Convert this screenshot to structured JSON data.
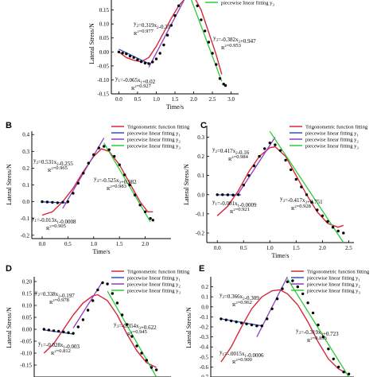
{
  "figure": {
    "type": "multi-panel chart"
  },
  "chart_data": [
    {
      "panel": "A",
      "type": "scatter",
      "xlabel": "Time/s",
      "ylabel": "Lateral Stress/N",
      "xlim": [
        -0.2,
        3.2
      ],
      "ylim": [
        -0.15,
        0.2
      ],
      "xticks": [
        "0.0",
        "0.5",
        "1.0",
        "1.5",
        "2.0",
        "2.5",
        "3.0"
      ],
      "yticks": [
        "0.15",
        "0.10",
        "0.05",
        "0.00",
        "-0.05",
        "-0.10",
        "-0.15"
      ],
      "legend": [
        "piecewise linear fitting y3"
      ],
      "legend_position": "top-right",
      "annotations": [
        {
          "eq": "y2=0.319x2-0.31",
          "r2": "R2=0.977"
        },
        {
          "eq": "y3=-0.382x3+0.947",
          "r2": "R2=0.953"
        },
        {
          "eq": "y1=-0.065x1+0.02",
          "r2": "R2=0.927"
        }
      ],
      "data_points": [
        [
          0.0,
          0.0
        ],
        [
          0.1,
          -0.004
        ],
        [
          0.2,
          -0.007
        ],
        [
          0.3,
          -0.015
        ],
        [
          0.4,
          -0.02
        ],
        [
          0.5,
          -0.028
        ],
        [
          0.6,
          -0.035
        ],
        [
          0.7,
          -0.04
        ],
        [
          0.8,
          -0.042
        ],
        [
          0.9,
          -0.036
        ],
        [
          1.0,
          -0.025
        ],
        [
          1.1,
          -0.005
        ],
        [
          1.2,
          0.025
        ],
        [
          1.3,
          0.06
        ],
        [
          1.4,
          0.095
        ],
        [
          1.5,
          0.13
        ],
        [
          1.6,
          0.165
        ],
        [
          1.7,
          0.195
        ],
        [
          2.1,
          0.165
        ],
        [
          2.2,
          0.115
        ],
        [
          2.3,
          0.075
        ],
        [
          2.4,
          0.035
        ],
        [
          2.5,
          -0.005
        ],
        [
          2.6,
          -0.045
        ],
        [
          2.7,
          -0.095
        ],
        [
          2.8,
          -0.115
        ],
        [
          2.85,
          -0.12
        ]
      ],
      "trig_fit": [
        [
          0.0,
          0.0
        ],
        [
          0.2,
          -0.02
        ],
        [
          0.4,
          -0.03
        ],
        [
          0.6,
          -0.035
        ],
        [
          0.8,
          -0.02
        ],
        [
          1.0,
          0.02
        ],
        [
          1.2,
          0.07
        ],
        [
          1.4,
          0.12
        ],
        [
          1.6,
          0.165
        ],
        [
          1.8,
          0.195
        ],
        [
          2.0,
          0.2
        ],
        [
          2.2,
          0.15
        ],
        [
          2.4,
          0.07
        ],
        [
          2.6,
          -0.01
        ],
        [
          2.75,
          -0.08
        ]
      ],
      "fit_y1": [
        [
          0.0,
          0.01
        ],
        [
          0.8,
          -0.042
        ]
      ],
      "fit_y2": [
        [
          0.8,
          -0.055
        ],
        [
          1.8,
          0.2
        ]
      ],
      "fit_y3": [
        [
          1.9,
          0.2
        ],
        [
          2.75,
          -0.105
        ]
      ]
    },
    {
      "panel": "B",
      "type": "scatter",
      "xlabel": "Time/s",
      "ylabel": "Lateral Stress/N",
      "xlim": [
        -0.2,
        2.5
      ],
      "ylim": [
        -0.22,
        0.42
      ],
      "xticks": [
        "0.0",
        "0.5",
        "1.0",
        "1.5",
        "2.0"
      ],
      "yticks": [
        "0.4",
        "0.3",
        "0.2",
        "0.1",
        "0.0",
        "-0.1",
        "-0.2"
      ],
      "legend": [
        "Trigonometric function fitting",
        "piecewise linear fitting y1",
        "piecewise linear fitting y2",
        "piecewise linear fitting y3"
      ],
      "legend_position": "top-right",
      "annotations": [
        {
          "eq": "y2=0.531x2-0.255",
          "r2": "R2=0.965"
        },
        {
          "eq": "y3=-0.525x3+0.982",
          "r2": "R2=0.983"
        },
        {
          "eq": "y1=-0.013x1-0.0008",
          "r2": "R2=0.905"
        }
      ],
      "data_points": [
        [
          0.0,
          0.0
        ],
        [
          0.1,
          -0.002
        ],
        [
          0.2,
          -0.004
        ],
        [
          0.3,
          -0.006
        ],
        [
          0.4,
          -0.003
        ],
        [
          0.5,
          0.0
        ],
        [
          0.6,
          0.05
        ],
        [
          0.7,
          0.11
        ],
        [
          0.8,
          0.17
        ],
        [
          0.9,
          0.23
        ],
        [
          1.0,
          0.28
        ],
        [
          1.1,
          0.32
        ],
        [
          1.2,
          0.33
        ],
        [
          1.3,
          0.31
        ],
        [
          1.4,
          0.27
        ],
        [
          1.5,
          0.22
        ],
        [
          1.6,
          0.16
        ],
        [
          1.7,
          0.1
        ],
        [
          1.8,
          0.04
        ],
        [
          1.9,
          -0.02
        ],
        [
          2.0,
          -0.06
        ],
        [
          2.1,
          -0.1
        ],
        [
          2.15,
          -0.11
        ]
      ],
      "trig_fit": [
        [
          0.0,
          -0.08
        ],
        [
          0.2,
          -0.06
        ],
        [
          0.4,
          0.0
        ],
        [
          0.6,
          0.08
        ],
        [
          0.8,
          0.18
        ],
        [
          1.0,
          0.27
        ],
        [
          1.15,
          0.315
        ],
        [
          1.3,
          0.3
        ],
        [
          1.5,
          0.22
        ],
        [
          1.7,
          0.11
        ],
        [
          1.9,
          0.0
        ],
        [
          2.05,
          -0.06
        ],
        [
          2.15,
          -0.06
        ]
      ],
      "fit_y1": [
        [
          0.0,
          -0.001
        ],
        [
          0.5,
          -0.007
        ]
      ],
      "fit_y2": [
        [
          0.4,
          -0.04
        ],
        [
          1.2,
          0.38
        ]
      ],
      "fit_y3": [
        [
          1.2,
          0.35
        ],
        [
          2.1,
          -0.12
        ]
      ]
    },
    {
      "panel": "C",
      "type": "scatter",
      "xlabel": "Time/s",
      "ylabel": "Lateral Stress/N",
      "xlim": [
        -0.2,
        2.6
      ],
      "ylim": [
        -0.25,
        0.36
      ],
      "xticks": [
        "0.0",
        "0.5",
        "1.0",
        "1.5",
        "2.0",
        "2.5"
      ],
      "yticks": [
        "0.3",
        "0.2",
        "0.1",
        "0.0",
        "-0.1",
        "-0.2"
      ],
      "legend": [
        "Trigonometric function fitting",
        "piecewise linear fitting y1",
        "piecewise linear fitting y2",
        "piecewise linear fitting y3"
      ],
      "legend_position": "top-right",
      "annotations": [
        {
          "eq": "y2=0.417x2-0.16",
          "r2": "R2=0.984"
        },
        {
          "eq": "y3=-0.417x3+0.751",
          "r2": "R2=0.928"
        },
        {
          "eq": "y1=-0.001x1-0.0009",
          "r2": "R2=0.921"
        }
      ],
      "data_points": [
        [
          0.0,
          0.0
        ],
        [
          0.1,
          0.0
        ],
        [
          0.2,
          -0.001
        ],
        [
          0.3,
          -0.002
        ],
        [
          0.4,
          0.0
        ],
        [
          0.5,
          0.05
        ],
        [
          0.6,
          0.1
        ],
        [
          0.7,
          0.15
        ],
        [
          0.8,
          0.2
        ],
        [
          0.9,
          0.24
        ],
        [
          1.0,
          0.27
        ],
        [
          1.1,
          0.26
        ],
        [
          1.2,
          0.23
        ],
        [
          1.3,
          0.18
        ],
        [
          1.4,
          0.13
        ],
        [
          1.5,
          0.08
        ],
        [
          1.6,
          0.04
        ],
        [
          1.7,
          0.0
        ],
        [
          1.8,
          -0.04
        ],
        [
          1.9,
          -0.08
        ],
        [
          2.0,
          -0.11
        ],
        [
          2.1,
          -0.14
        ],
        [
          2.2,
          -0.17
        ],
        [
          2.3,
          -0.19
        ],
        [
          2.4,
          -0.2
        ]
      ],
      "trig_fit": [
        [
          0.0,
          -0.11
        ],
        [
          0.2,
          -0.06
        ],
        [
          0.4,
          0.02
        ],
        [
          0.6,
          0.12
        ],
        [
          0.8,
          0.2
        ],
        [
          1.0,
          0.245
        ],
        [
          1.1,
          0.25
        ],
        [
          1.3,
          0.2
        ],
        [
          1.5,
          0.1
        ],
        [
          1.7,
          0.0
        ],
        [
          1.9,
          -0.09
        ],
        [
          2.1,
          -0.15
        ],
        [
          2.3,
          -0.17
        ],
        [
          2.4,
          -0.16
        ]
      ],
      "fit_y1": [
        [
          0.0,
          -0.001
        ],
        [
          0.45,
          -0.001
        ]
      ],
      "fit_y2": [
        [
          0.4,
          0.005
        ],
        [
          1.1,
          0.3
        ]
      ],
      "fit_y3": [
        [
          1.0,
          0.33
        ],
        [
          2.4,
          -0.25
        ]
      ]
    },
    {
      "panel": "D",
      "type": "scatter",
      "xlabel": "",
      "ylabel": "Lateral Stress/N",
      "xlim": [
        -0.2,
        2.6
      ],
      "ylim": [
        -0.2,
        0.22
      ],
      "yticks": [
        "0.20",
        "0.15",
        "0.10",
        "0.05",
        "0.00",
        "-0.05",
        "-0.10",
        "-0.15"
      ],
      "legend": [
        "Trigonometric function fitting",
        "piecewise linear fitting y1",
        "piecewise linear fitting y2",
        "piecewise linear fitting y3"
      ],
      "legend_position": "top-right",
      "annotations": [
        {
          "eq": "y2=0.338x2-0.197",
          "r2": "R2=0.978"
        },
        {
          "eq": "y3=-0.354x3+0.622",
          "r2": "R2=0.945"
        },
        {
          "eq": "y1=-0.028x1-0.003",
          "r2": "R2=0.812"
        }
      ],
      "data_points": [
        [
          0.0,
          0.0
        ],
        [
          0.1,
          -0.003
        ],
        [
          0.2,
          -0.006
        ],
        [
          0.3,
          -0.008
        ],
        [
          0.4,
          -0.011
        ],
        [
          0.5,
          -0.014
        ],
        [
          0.6,
          -0.017
        ],
        [
          0.7,
          0.01
        ],
        [
          0.8,
          0.04
        ],
        [
          0.9,
          0.08
        ],
        [
          1.0,
          0.12
        ],
        [
          1.1,
          0.165
        ],
        [
          1.2,
          0.195
        ],
        [
          1.3,
          0.19
        ],
        [
          1.4,
          0.15
        ],
        [
          1.5,
          0.11
        ],
        [
          1.6,
          0.06
        ],
        [
          1.7,
          0.02
        ],
        [
          1.8,
          -0.03
        ],
        [
          1.9,
          -0.07
        ],
        [
          2.0,
          -0.1
        ],
        [
          2.1,
          -0.13
        ],
        [
          2.2,
          -0.16
        ],
        [
          2.3,
          -0.17
        ]
      ],
      "trig_fit": [
        [
          0.0,
          -0.1
        ],
        [
          0.2,
          -0.06
        ],
        [
          0.4,
          0.0
        ],
        [
          0.6,
          0.06
        ],
        [
          0.8,
          0.11
        ],
        [
          1.0,
          0.14
        ],
        [
          1.1,
          0.145
        ],
        [
          1.3,
          0.12
        ],
        [
          1.5,
          0.06
        ],
        [
          1.7,
          -0.02
        ],
        [
          1.9,
          -0.09
        ],
        [
          2.1,
          -0.14
        ],
        [
          2.3,
          -0.16
        ]
      ],
      "fit_y1": [
        [
          0.0,
          -0.003
        ],
        [
          0.6,
          -0.02
        ]
      ],
      "fit_y2": [
        [
          0.6,
          0.005
        ],
        [
          1.2,
          0.2
        ]
      ],
      "fit_y3": [
        [
          1.3,
          0.16
        ],
        [
          2.3,
          -0.2
        ]
      ]
    },
    {
      "panel": "E",
      "type": "scatter",
      "xlabel": "",
      "ylabel": "Lateral Stress/N",
      "xlim": [
        -0.2,
        2.6
      ],
      "ylim": [
        -0.7,
        0.3
      ],
      "yticks": [
        "0.2",
        "0.1",
        "0.0",
        "-0.1",
        "-0.2",
        "-0.3",
        "-0.4",
        "-0.5",
        "-0.6",
        "-0.7"
      ],
      "legend": [
        "Trigonometric function fitting",
        "piecewise linear fitting y1",
        "piecewise linear fitting y2",
        "piecewise linear fitting y3"
      ],
      "legend_position": "top-right",
      "annotations": [
        {
          "eq": "y2=0.366x2-0.309",
          "r2": "R2=0.962"
        },
        {
          "eq": "y3=-0.319x3+0.723",
          "r2": "R2=0.893"
        },
        {
          "eq": "y1=-.0015x1-0.0006",
          "r2": "R2=0.900"
        }
      ],
      "data_points": [
        [
          0.0,
          -0.12
        ],
        [
          0.1,
          -0.13
        ],
        [
          0.2,
          -0.14
        ],
        [
          0.3,
          -0.15
        ],
        [
          0.4,
          -0.16
        ],
        [
          0.5,
          -0.17
        ],
        [
          0.6,
          -0.18
        ],
        [
          0.7,
          -0.19
        ],
        [
          0.8,
          -0.19
        ],
        [
          0.9,
          -0.12
        ],
        [
          1.0,
          -0.02
        ],
        [
          1.1,
          0.08
        ],
        [
          1.2,
          0.18
        ],
        [
          1.3,
          0.25
        ],
        [
          1.4,
          0.26
        ],
        [
          1.5,
          0.2
        ],
        [
          1.6,
          0.13
        ],
        [
          1.7,
          0.04
        ],
        [
          1.8,
          -0.06
        ],
        [
          1.9,
          -0.18
        ],
        [
          2.0,
          -0.3
        ],
        [
          2.1,
          -0.42
        ],
        [
          2.2,
          -0.52
        ],
        [
          2.3,
          -0.6
        ],
        [
          2.4,
          -0.65
        ],
        [
          2.5,
          -0.67
        ]
      ],
      "trig_fit": [
        [
          0.0,
          -0.55
        ],
        [
          0.2,
          -0.4
        ],
        [
          0.4,
          -0.2
        ],
        [
          0.6,
          -0.02
        ],
        [
          0.8,
          0.1
        ],
        [
          1.0,
          0.16
        ],
        [
          1.15,
          0.17
        ],
        [
          1.3,
          0.13
        ],
        [
          1.5,
          0.02
        ],
        [
          1.7,
          -0.15
        ],
        [
          1.9,
          -0.35
        ],
        [
          2.1,
          -0.52
        ],
        [
          2.3,
          -0.62
        ],
        [
          2.45,
          -0.66
        ]
      ],
      "fit_y1": [
        [
          0.0,
          -0.12
        ],
        [
          0.8,
          -0.19
        ]
      ],
      "fit_y2": [
        [
          0.7,
          -0.3
        ],
        [
          1.3,
          0.3
        ]
      ],
      "fit_y3": [
        [
          1.3,
          0.28
        ],
        [
          2.5,
          -0.7
        ]
      ]
    }
  ],
  "colors": {
    "trig": "#d6273c",
    "y1": "#3350c4",
    "y2": "#8b3fc2",
    "y3": "#2dcc36",
    "points": "#000000"
  }
}
